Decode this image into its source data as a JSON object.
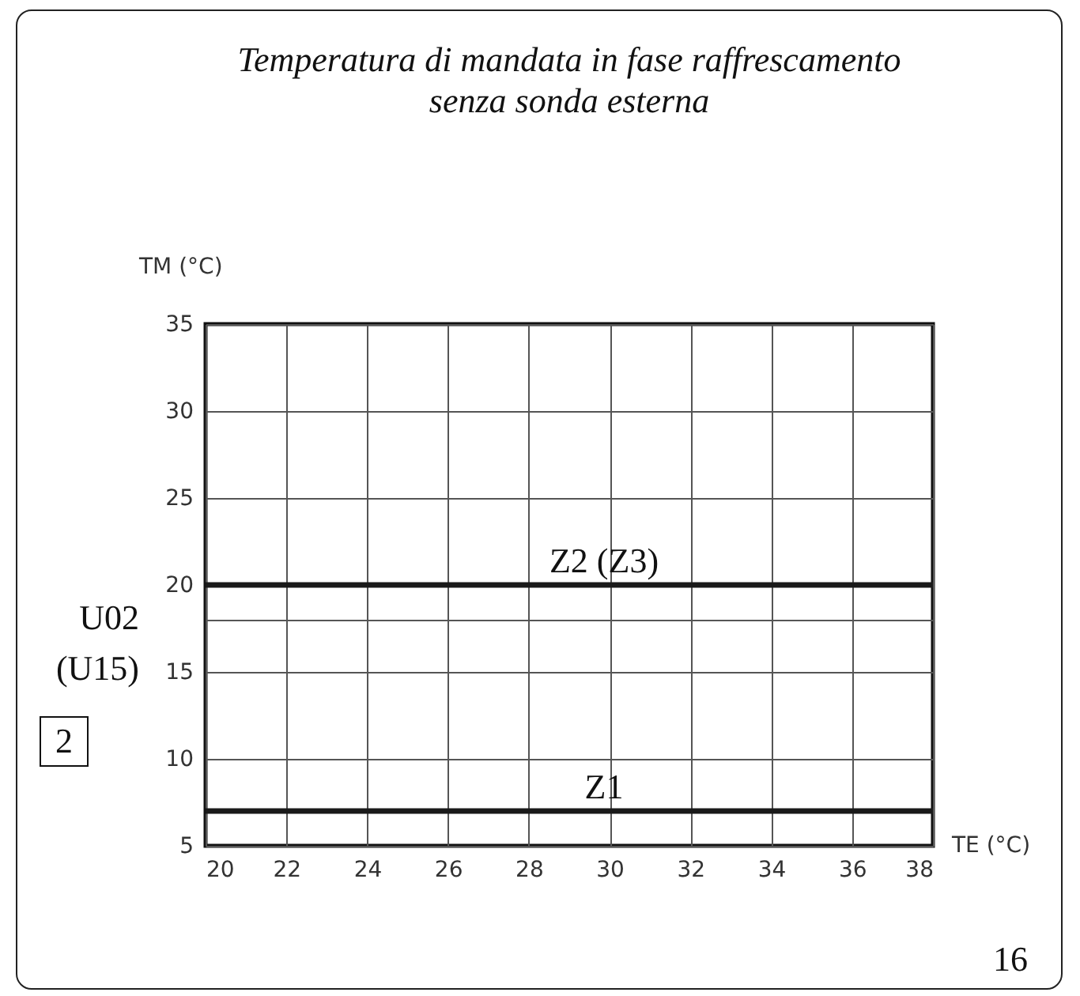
{
  "chart_data": {
    "type": "line",
    "title": "Temperatura di mandata in fase raffrescamento",
    "subtitle": "senza sonda esterna",
    "xlabel": "TE (°C)",
    "ylabel": "TM (°C)",
    "x": [
      20,
      38
    ],
    "series": [
      {
        "name": "Z2 (Z3)",
        "color": "#1a1a1a",
        "values": [
          20,
          20
        ]
      },
      {
        "name": "Z1",
        "color": "#1a1a1a",
        "values": [
          7,
          7
        ]
      }
    ],
    "xlim": [
      20,
      38
    ],
    "xticks": [
      20,
      22,
      24,
      26,
      28,
      30,
      32,
      34,
      36,
      38
    ],
    "ylim": [
      5,
      35
    ],
    "yticks": [
      5,
      10,
      15,
      {
        "value": 18,
        "label": null
      },
      20,
      25,
      30,
      35
    ],
    "grid": true,
    "line_style": "solid",
    "marker": "none",
    "annotations": [
      "U02 (U15)",
      "2",
      "16"
    ]
  }
}
